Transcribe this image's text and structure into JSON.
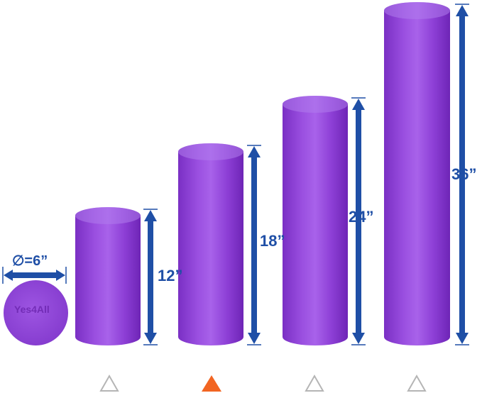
{
  "product": {
    "brand_logo": "Yes4All",
    "diameter_label": "∅=6”",
    "rollers": [
      {
        "length_label": "12”"
      },
      {
        "length_label": "18”"
      },
      {
        "length_label": "24”"
      },
      {
        "length_label": "36”"
      }
    ]
  },
  "carousel": {
    "indicators": [
      {
        "active": false
      },
      {
        "active": true
      },
      {
        "active": false
      },
      {
        "active": false
      }
    ],
    "active_color": "#f26522",
    "inactive_color": "#b5b5b5"
  },
  "colors": {
    "roller": "#8e3fd8",
    "annotation": "#1f4fa6"
  }
}
